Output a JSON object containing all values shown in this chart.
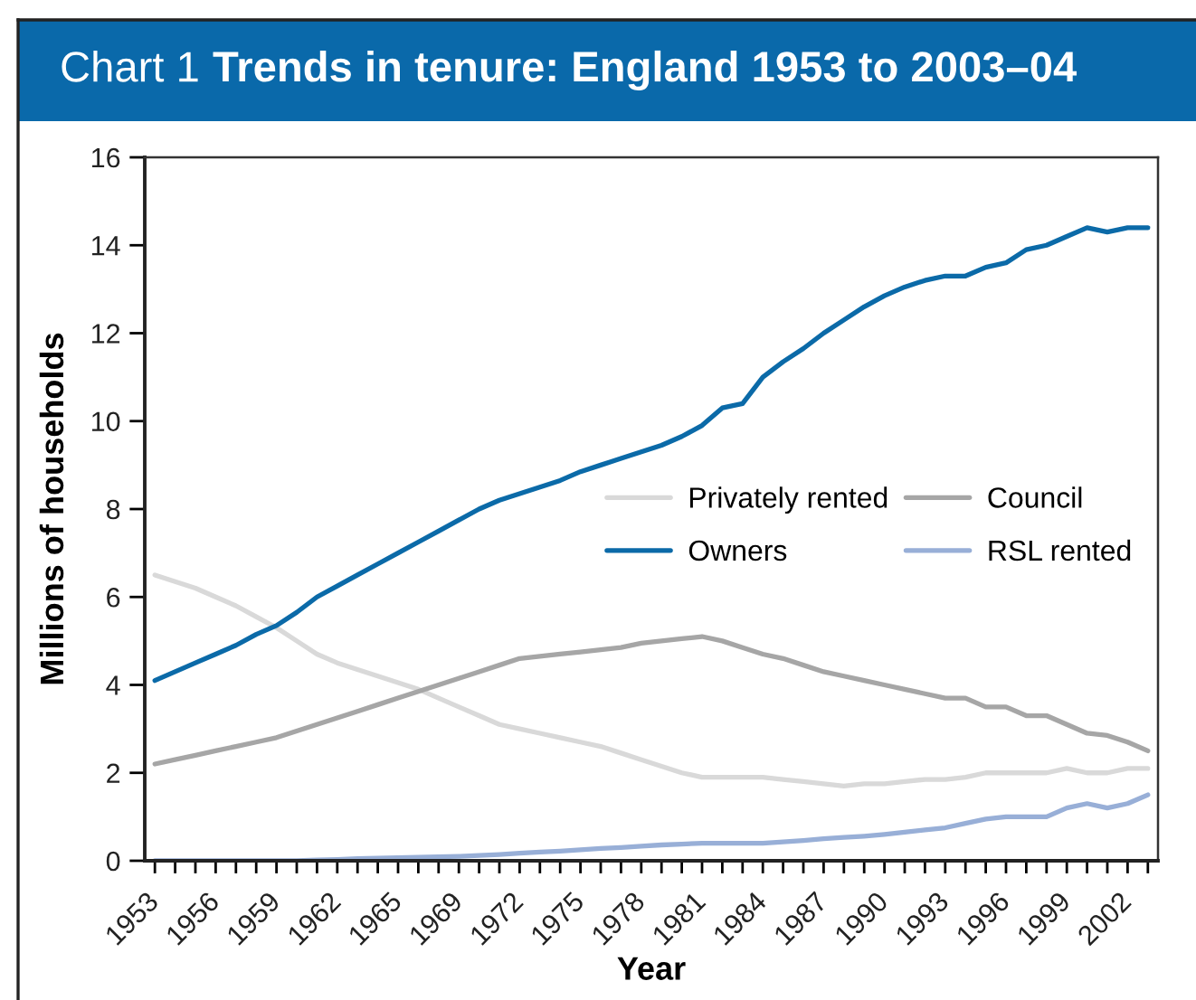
{
  "chart_data": {
    "type": "line",
    "title": "Trends in tenure: England 1953 to 2003–04",
    "subtitle": "Chart 1",
    "xlabel": "Year",
    "ylabel": "Millions of households",
    "categories": [
      "1953",
      null,
      null,
      "1956",
      null,
      null,
      "1959",
      null,
      null,
      "1962",
      null,
      null,
      "1965",
      null,
      null,
      "1969",
      null,
      null,
      "1972",
      null,
      null,
      "1975",
      null,
      null,
      "1978",
      null,
      null,
      "1981",
      null,
      null,
      "1984",
      null,
      null,
      "1987",
      null,
      null,
      "1990",
      null,
      null,
      "1993",
      null,
      null,
      "1996",
      null,
      null,
      "1999",
      null,
      null,
      "2002",
      null
    ],
    "series": [
      {
        "name": "Privately rented",
        "color": "#d9d9d9",
        "values": [
          6.5,
          6.35,
          6.2,
          6.0,
          5.8,
          5.55,
          5.3,
          5.0,
          4.7,
          4.5,
          4.35,
          4.2,
          4.05,
          3.9,
          3.7,
          3.5,
          3.3,
          3.1,
          3.0,
          2.9,
          2.8,
          2.7,
          2.6,
          2.45,
          2.3,
          2.15,
          2.0,
          1.9,
          1.9,
          1.9,
          1.9,
          1.85,
          1.8,
          1.75,
          1.7,
          1.75,
          1.75,
          1.8,
          1.85,
          1.85,
          1.9,
          2.0,
          2.0,
          2.0,
          2.0,
          2.1,
          2.0,
          2.0,
          2.1,
          2.1
        ]
      },
      {
        "name": "Council",
        "color": "#a6a6a6",
        "values": [
          2.2,
          2.3,
          2.4,
          2.5,
          2.6,
          2.7,
          2.8,
          2.95,
          3.1,
          3.25,
          3.4,
          3.55,
          3.7,
          3.85,
          4.0,
          4.15,
          4.3,
          4.45,
          4.6,
          4.65,
          4.7,
          4.75,
          4.8,
          4.85,
          4.95,
          5.0,
          5.05,
          5.1,
          5.0,
          4.85,
          4.7,
          4.6,
          4.45,
          4.3,
          4.2,
          4.1,
          4.0,
          3.9,
          3.8,
          3.7,
          3.7,
          3.5,
          3.5,
          3.3,
          3.3,
          3.1,
          2.9,
          2.85,
          2.7,
          2.5
        ]
      },
      {
        "name": "Owners",
        "color": "#0b6aa8",
        "values": [
          4.1,
          4.3,
          4.5,
          4.7,
          4.9,
          5.15,
          5.35,
          5.65,
          6.0,
          6.25,
          6.5,
          6.75,
          7.0,
          7.25,
          7.5,
          7.75,
          8.0,
          8.2,
          8.35,
          8.5,
          8.65,
          8.85,
          9.0,
          9.15,
          9.3,
          9.45,
          9.65,
          9.9,
          10.3,
          10.4,
          11.0,
          11.35,
          11.65,
          12.0,
          12.3,
          12.6,
          12.85,
          13.05,
          13.2,
          13.3,
          13.3,
          13.5,
          13.6,
          13.9,
          14.0,
          14.2,
          14.4,
          14.3,
          14.4,
          14.4
        ]
      },
      {
        "name": "RSL rented",
        "color": "#98afd7",
        "values": [
          0,
          0,
          0,
          0,
          0,
          0,
          0,
          0,
          0.02,
          0.03,
          0.05,
          0.06,
          0.07,
          0.08,
          0.09,
          0.1,
          0.12,
          0.14,
          0.17,
          0.2,
          0.22,
          0.25,
          0.28,
          0.3,
          0.33,
          0.36,
          0.38,
          0.4,
          0.4,
          0.4,
          0.4,
          0.43,
          0.46,
          0.5,
          0.53,
          0.56,
          0.6,
          0.65,
          0.7,
          0.75,
          0.85,
          0.95,
          1.0,
          1.0,
          1.0,
          1.2,
          1.3,
          1.2,
          1.3,
          1.5
        ]
      }
    ],
    "ylim": [
      0,
      16
    ],
    "yticks": [
      0,
      2,
      4,
      6,
      8,
      10,
      12,
      14,
      16
    ],
    "grid": false,
    "legend": "right"
  }
}
